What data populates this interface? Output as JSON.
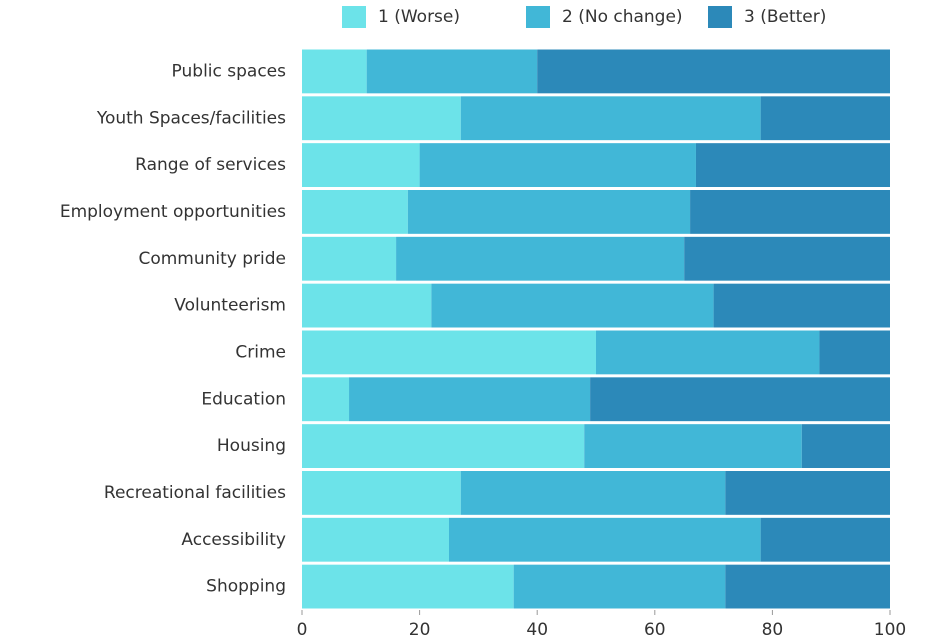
{
  "chart_data": {
    "type": "stacked_bar_horizontal",
    "categories": [
      "Public spaces",
      "Youth Spaces/facilities",
      "Range of services",
      "Employment opportunities",
      "Community pride",
      "Volunteerism",
      "Crime",
      "Education",
      "Housing",
      "Recreational facilities",
      "Accessibility",
      "Shopping"
    ],
    "series": [
      {
        "name": "1 (Worse)",
        "color": "#6ce3e9",
        "values": [
          11,
          27,
          20,
          18,
          16,
          22,
          50,
          8,
          48,
          27,
          25,
          36
        ]
      },
      {
        "name": "2 (No change)",
        "color": "#41b7d7",
        "values": [
          29,
          51,
          47,
          48,
          49,
          48,
          38,
          41,
          37,
          45,
          53,
          36
        ]
      },
      {
        "name": "3 (Better)",
        "color": "#2c89b9",
        "values": [
          60,
          22,
          33,
          34,
          35,
          30,
          12,
          51,
          15,
          28,
          22,
          28
        ]
      }
    ],
    "xlim": [
      0,
      100
    ],
    "xticks": [
      0,
      20,
      40,
      60,
      80,
      100
    ],
    "legend": "top"
  }
}
